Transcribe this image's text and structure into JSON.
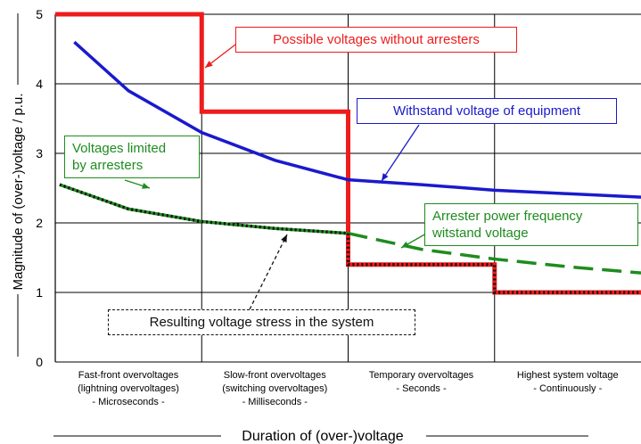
{
  "chart_data": {
    "type": "line",
    "ylabel": "Magnitude of (over-)voltage  / p.u.",
    "xlabel": "Duration of (over-)voltage",
    "categories": [
      "Fast-front overvoltages\n(lightning overvoltages)\n- Microseconds -",
      "Slow-front overvoltages\n(switching overvoltages)\n- Milliseconds -",
      "Temporary overvoltages\n- Seconds -",
      "Highest system voltage\n- Continuously -"
    ],
    "xlim": [
      0,
      4
    ],
    "ylim": [
      0,
      5
    ],
    "yticks": [
      0,
      1,
      2,
      3,
      4,
      5
    ],
    "grid": true,
    "series": [
      {
        "name": "Possible voltages without arresters",
        "color": "#ee1c1c",
        "style": "solid",
        "x": [
          0,
          1,
          1,
          2,
          2,
          3,
          3,
          4
        ],
        "values": [
          5,
          5,
          3.6,
          3.6,
          1.4,
          1.4,
          1,
          1
        ]
      },
      {
        "name": "Withstand voltage of  equipment",
        "color": "#1a1acc",
        "style": "solid",
        "x": [
          0.13,
          0.5,
          1,
          1.5,
          2,
          2.5,
          3,
          3.5,
          4
        ],
        "values": [
          4.6,
          3.9,
          3.3,
          2.9,
          2.62,
          2.55,
          2.47,
          2.42,
          2.37
        ]
      },
      {
        "name": "Voltages limited\nby arresters",
        "color": "#1e8c1e",
        "style": "solid",
        "x": [
          0.03,
          0.5,
          1,
          1.5,
          2
        ],
        "values": [
          2.55,
          2.2,
          2.02,
          1.92,
          1.85
        ]
      },
      {
        "name": "Arrester power frequency\nwitstand voltage",
        "color": "#1e8c1e",
        "style": "dashed",
        "x": [
          2,
          2.5,
          3,
          3.5,
          4
        ],
        "values": [
          1.85,
          1.62,
          1.48,
          1.37,
          1.28
        ]
      },
      {
        "name": "Resulting voltage stress in the system",
        "color": "#111111",
        "style": "dotted",
        "x": [
          0.03,
          0.5,
          1,
          1.5,
          2,
          2,
          3,
          3,
          4
        ],
        "values": [
          2.55,
          2.2,
          2.02,
          1.92,
          1.85,
          1.4,
          1.4,
          1,
          1
        ]
      }
    ]
  }
}
